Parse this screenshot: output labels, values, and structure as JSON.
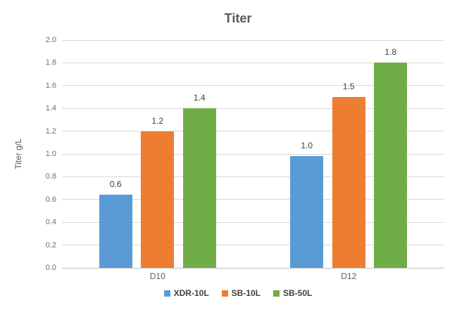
{
  "chart_data": {
    "type": "bar",
    "title": "Titer",
    "ylabel": "Titer g/L",
    "xlabel": "",
    "categories": [
      "D10",
      "D12"
    ],
    "series": [
      {
        "name": "XDR-10L",
        "color": "#5B9BD5",
        "values": [
          0.64,
          0.98
        ],
        "labels": [
          "0.6",
          "1.0"
        ]
      },
      {
        "name": "SB-10L",
        "color": "#ED7D31",
        "values": [
          1.2,
          1.5
        ],
        "labels": [
          "1.2",
          "1.5"
        ]
      },
      {
        "name": "SB-50L",
        "color": "#70AD47",
        "values": [
          1.4,
          1.8
        ],
        "labels": [
          "1.4",
          "1.8"
        ]
      }
    ],
    "ylim": [
      0,
      2.0
    ],
    "ytick_step": 0.2,
    "ytick_labels": [
      "0.0",
      "0.2",
      "0.4",
      "0.6",
      "0.8",
      "1.0",
      "1.2",
      "1.4",
      "1.6",
      "1.8",
      "2.0"
    ],
    "grid": true,
    "legend_position": "bottom",
    "colors": {
      "gridline": "#d9d9d9",
      "baseline": "#bfbfbf",
      "title_text": "#595959",
      "axis_text": "#6e6e6e",
      "data_label_text": "#404040"
    }
  }
}
